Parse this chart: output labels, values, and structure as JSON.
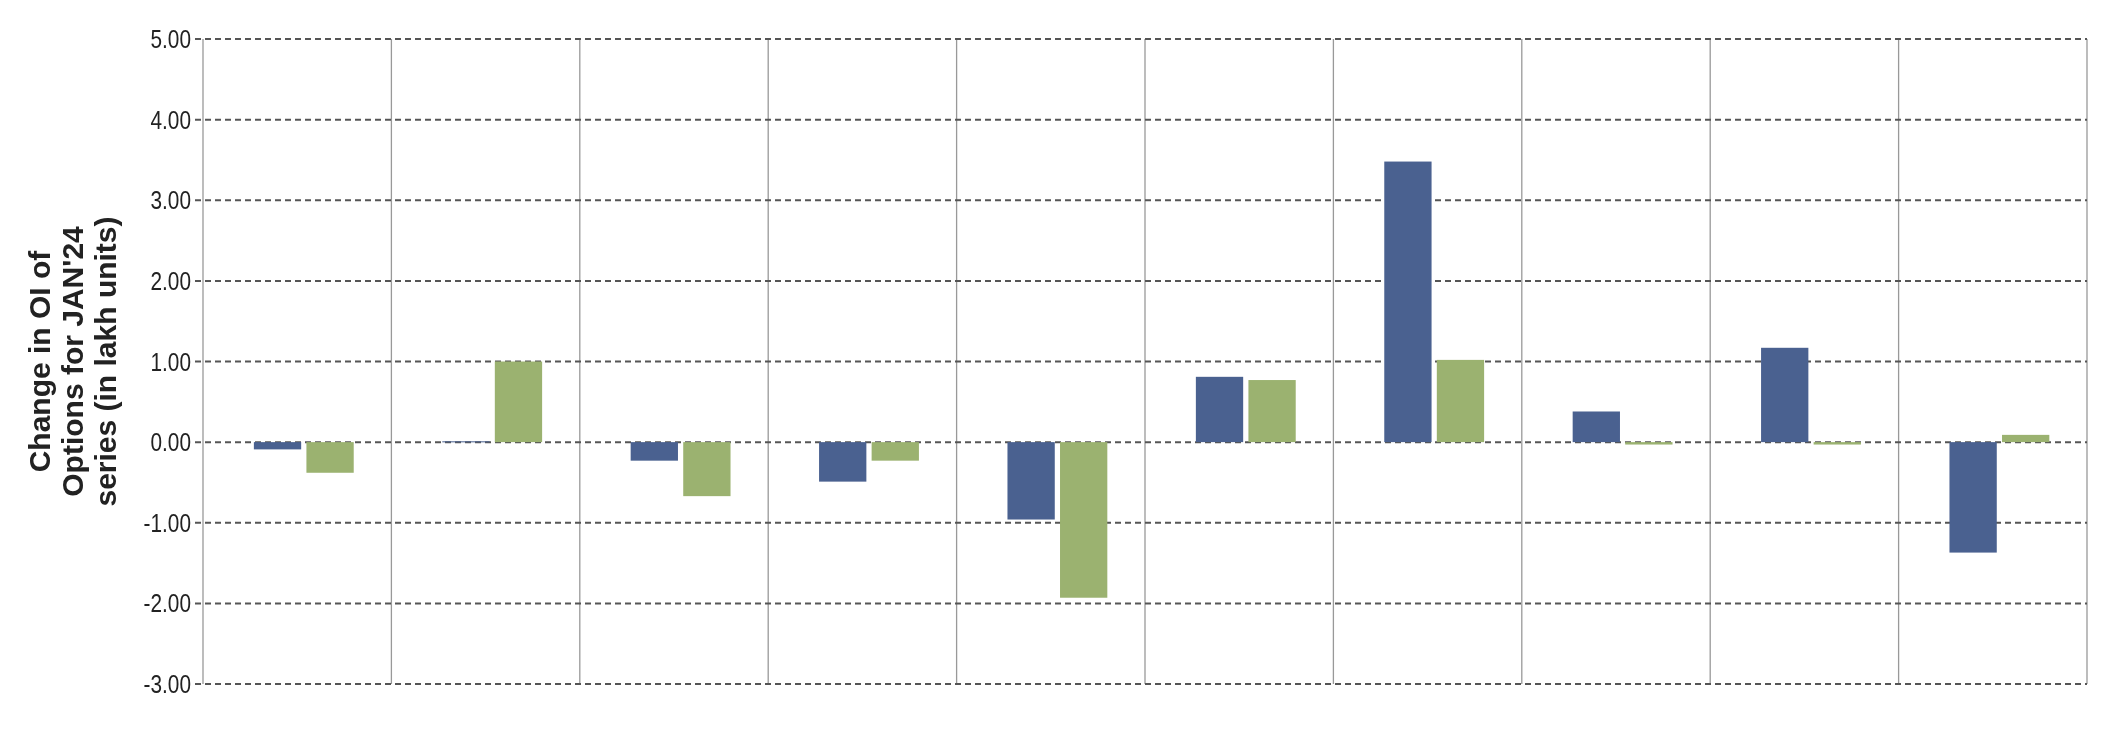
{
  "chart_data": {
    "type": "bar",
    "ylabel": "Change in OI of Options for JAN'24 series (in lakh units)",
    "categories": [
      null,
      null,
      null,
      null,
      null,
      null,
      null,
      null,
      null,
      null
    ],
    "series": [
      {
        "color": "#4a6190",
        "values": [
          -0.09,
          0.01,
          -0.23,
          -0.49,
          -0.96,
          0.81,
          3.48,
          0.38,
          1.17,
          -1.37
        ]
      },
      {
        "color": "#9bb270",
        "values": [
          -0.38,
          1.0,
          -0.67,
          -0.23,
          -1.93,
          0.77,
          1.02,
          -0.03,
          -0.03,
          0.09
        ]
      }
    ],
    "ylim": [
      -3,
      5
    ],
    "yticks": [
      {
        "value": -3,
        "label": "-3.00"
      },
      {
        "value": -2,
        "label": "-2.00"
      },
      {
        "value": -1,
        "label": "-1.00"
      },
      {
        "value": 0,
        "label": "0.00"
      },
      {
        "value": 1,
        "label": "1.00"
      },
      {
        "value": 2,
        "label": "2.00"
      },
      {
        "value": 3,
        "label": "3.00"
      },
      {
        "value": 4,
        "label": "4.00"
      },
      {
        "value": 5,
        "label": "5.00"
      }
    ],
    "grid": true
  }
}
